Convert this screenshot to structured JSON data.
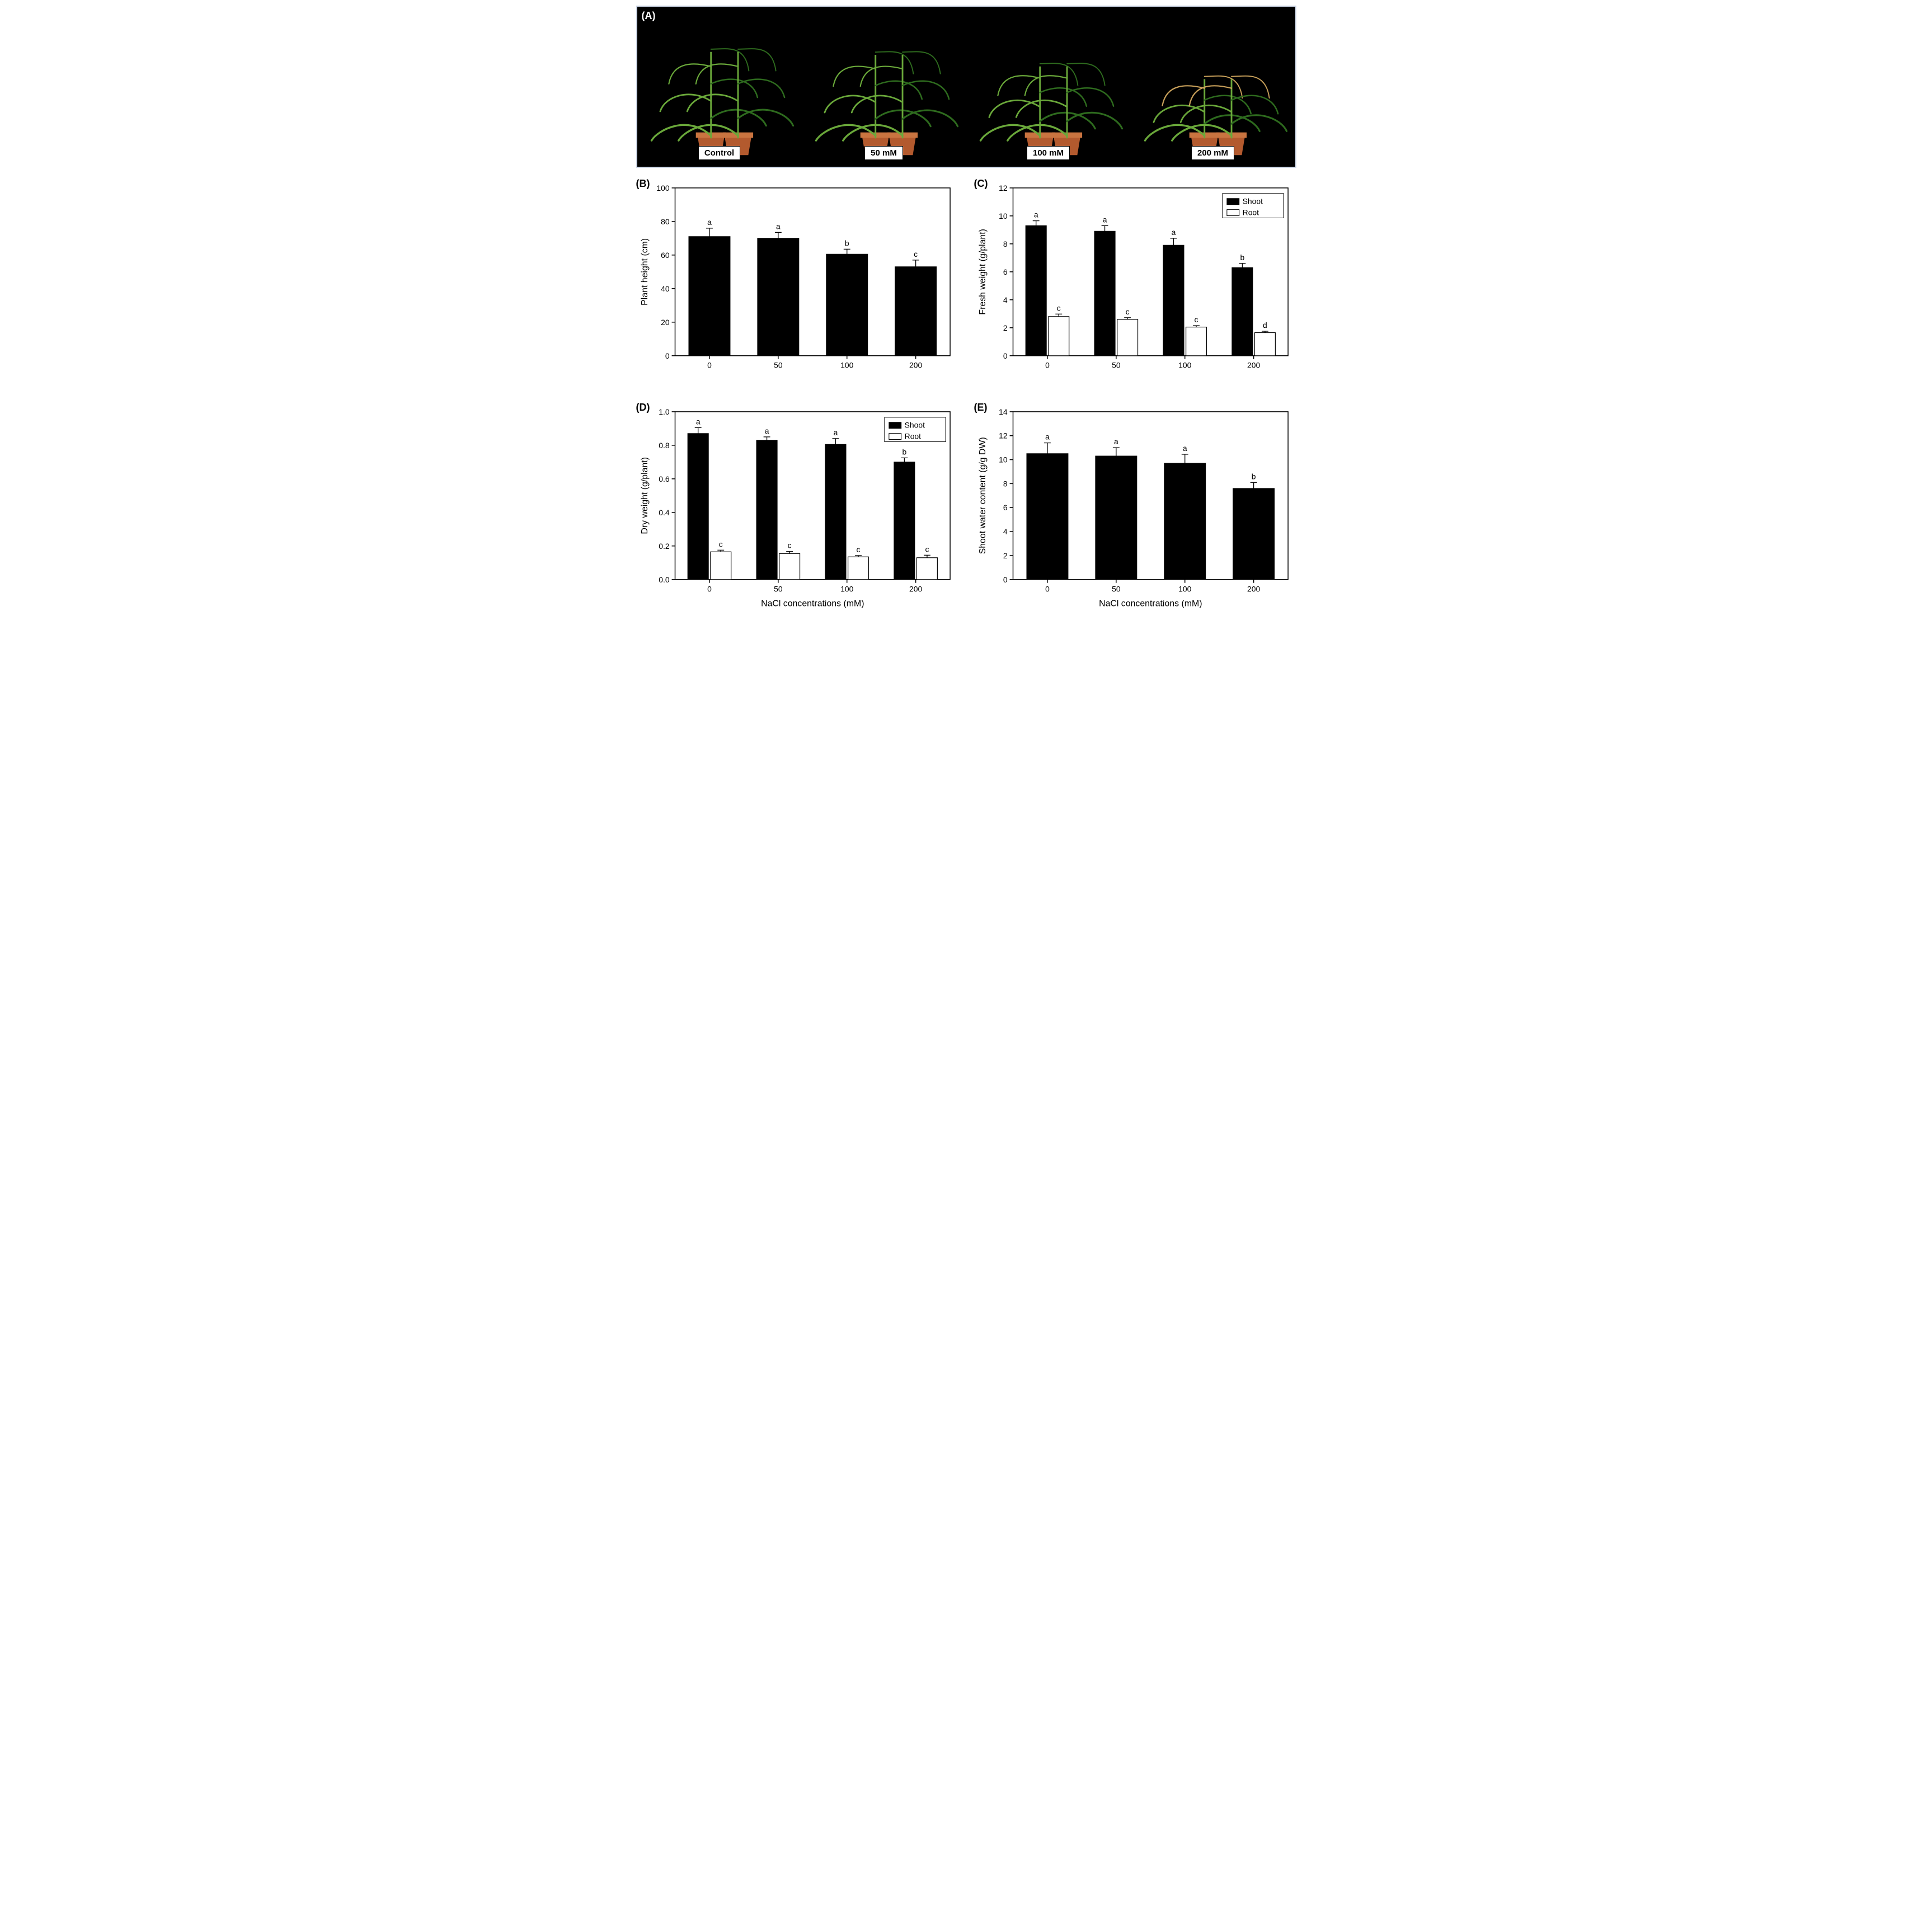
{
  "panelA": {
    "letter": "(A)",
    "background": "#000000",
    "pot_color": "#b35a2e",
    "pot_rim": "#c97440",
    "leaf_dark": "#2e6b1e",
    "leaf_light": "#6aa83a",
    "leaf_dry": "#c8a05a",
    "treatments": [
      {
        "label": "Control",
        "height": 1.0,
        "dry": 0.0
      },
      {
        "label": "50 mM",
        "height": 0.97,
        "dry": 0.02
      },
      {
        "label": "100 mM",
        "height": 0.85,
        "dry": 0.1
      },
      {
        "label": "200 mM",
        "height": 0.72,
        "dry": 0.3
      }
    ]
  },
  "global": {
    "xlabel": "NaCl concentrations (mM)",
    "xcats": [
      "0",
      "50",
      "100",
      "200"
    ],
    "bar_black": "#000000",
    "bar_white": "#ffffff",
    "bar_stroke": "#000000",
    "border_color": "#000000",
    "tick_fontsize": 14,
    "axis_fontsize": 16,
    "letter_fontsize": 18
  },
  "legend": {
    "shoot": "Shoot",
    "root": "Root"
  },
  "panelB": {
    "letter": "(B)",
    "ylabel": "Plant height (cm)",
    "ylim": [
      0,
      100
    ],
    "ytick_step": 20,
    "values": [
      71,
      70,
      60.5,
      53
    ],
    "errors": [
      5,
      3.5,
      3,
      4
    ],
    "sig": [
      "a",
      "a",
      "b",
      "c"
    ]
  },
  "panelC": {
    "letter": "(C)",
    "ylabel": "Fresh weight (g/plant)",
    "ylim": [
      0,
      12
    ],
    "ytick_step": 2,
    "shoot": {
      "values": [
        9.3,
        8.9,
        7.9,
        6.3
      ],
      "errors": [
        0.35,
        0.4,
        0.5,
        0.3
      ],
      "sig": [
        "a",
        "a",
        "a",
        "b"
      ]
    },
    "root": {
      "values": [
        2.8,
        2.6,
        2.05,
        1.65
      ],
      "errors": [
        0.18,
        0.12,
        0.1,
        0.1
      ],
      "sig": [
        "c",
        "c",
        "c",
        "d"
      ]
    },
    "show_legend": true
  },
  "panelD": {
    "letter": "(D)",
    "ylabel": "Dry weight (g/plant)",
    "ylim": [
      0.0,
      1.0
    ],
    "ytick_step": 0.2,
    "decimals": 1,
    "shoot": {
      "values": [
        0.87,
        0.83,
        0.805,
        0.7
      ],
      "errors": [
        0.035,
        0.02,
        0.035,
        0.025
      ],
      "sig": [
        "a",
        "a",
        "a",
        "b"
      ]
    },
    "root": {
      "values": [
        0.165,
        0.155,
        0.135,
        0.13
      ],
      "errors": [
        0.01,
        0.012,
        0.008,
        0.015
      ],
      "sig": [
        "c",
        "c",
        "c",
        "c"
      ]
    },
    "show_legend": true
  },
  "panelE": {
    "letter": "(E)",
    "ylabel": "Shoot water content (g/g DW)",
    "ylim": [
      0,
      14
    ],
    "ytick_step": 2,
    "values": [
      10.5,
      10.3,
      9.7,
      7.6
    ],
    "errors": [
      0.9,
      0.7,
      0.75,
      0.5
    ],
    "sig": [
      "a",
      "a",
      "a",
      "b"
    ]
  }
}
